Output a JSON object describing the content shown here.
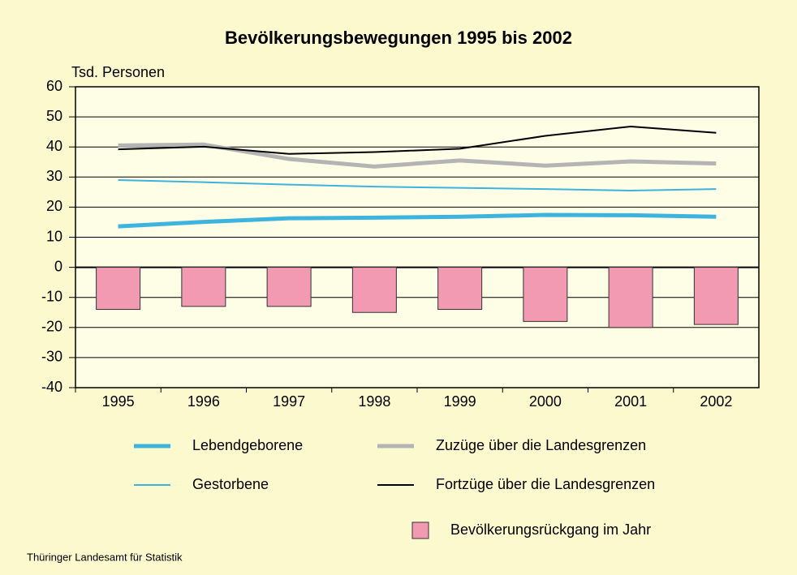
{
  "chart_data": {
    "type": "combo",
    "title": "Bevölkerungsbewegungen 1995 bis 2002",
    "y_axis_label": "Tsd. Personen",
    "source": "Thüringer Landesamt für Statistik",
    "categories": [
      "1995",
      "1996",
      "1997",
      "1998",
      "1999",
      "2000",
      "2001",
      "2002"
    ],
    "series": [
      {
        "name": "Lebendgeborene",
        "type": "line",
        "line_style": "thick",
        "color": "#3cb4de",
        "values": [
          13.6,
          15.1,
          16.3,
          16.5,
          16.8,
          17.4,
          17.3,
          16.8
        ]
      },
      {
        "name": "Zuzüge über die Landesgrenzen",
        "type": "line",
        "line_style": "thick",
        "color": "#b4b4b4",
        "values": [
          40.5,
          40.8,
          36,
          33.5,
          35.5,
          33.8,
          35.2,
          34.5
        ]
      },
      {
        "name": "Gestorbene",
        "type": "line",
        "line_style": "thin",
        "color": "#3cb4de",
        "values": [
          29,
          28.3,
          27.5,
          26.8,
          26.4,
          26.0,
          25.5,
          26.0
        ]
      },
      {
        "name": "Fortzüge über die Landesgrenzen",
        "type": "line",
        "line_style": "thin",
        "color": "#000000",
        "values": [
          39.2,
          40.1,
          37.7,
          38.3,
          39.4,
          43.7,
          46.8,
          44.7
        ]
      },
      {
        "name": "Bevölkerungsrückgang im Jahr",
        "type": "bar",
        "color": "#f29ab2",
        "values": [
          -14,
          -13,
          -13,
          -15,
          -14,
          -18,
          -20,
          -19
        ]
      }
    ],
    "ylim": [
      -40,
      60
    ],
    "yticks": [
      -40,
      -30,
      -20,
      -10,
      0,
      10,
      20,
      30,
      40,
      50,
      60
    ],
    "grid": true
  }
}
